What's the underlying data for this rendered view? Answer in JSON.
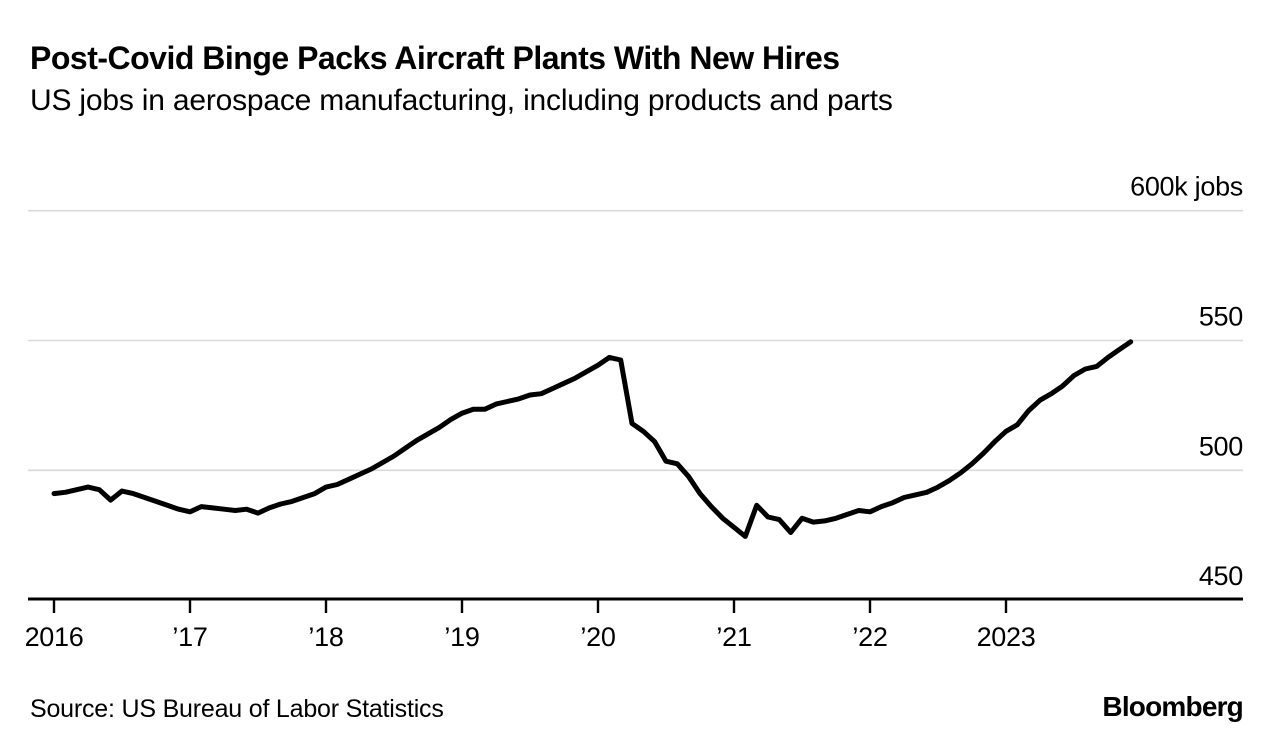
{
  "header": {
    "title": "Post-Covid Binge Packs Aircraft Plants With New Hires",
    "subtitle": "US jobs in aerospace manufacturing, including products and parts"
  },
  "chart_data": {
    "type": "line",
    "title": "Post-Covid Binge Packs Aircraft Plants With New Hires",
    "subtitle": "US jobs in aerospace manufacturing, including products and parts",
    "unit": "thousands of jobs",
    "frequency": "monthly",
    "x_start": "2016-01",
    "x_end": "2023-12",
    "ylim": [
      450,
      600
    ],
    "y_axis_side": "right",
    "grid": true,
    "legend": "none",
    "grid_color": "#d9d9d9",
    "axis_color": "#000000",
    "y_ticks": [
      {
        "value": 600,
        "label": "600k jobs"
      },
      {
        "value": 550,
        "label": "550"
      },
      {
        "value": 500,
        "label": "500"
      },
      {
        "value": 450,
        "label": "450"
      }
    ],
    "x_ticks": [
      {
        "month_index": 0,
        "label": "2016"
      },
      {
        "month_index": 12,
        "label": "’17"
      },
      {
        "month_index": 24,
        "label": "’18"
      },
      {
        "month_index": 36,
        "label": "’19"
      },
      {
        "month_index": 48,
        "label": "’20"
      },
      {
        "month_index": 60,
        "label": "’21"
      },
      {
        "month_index": 72,
        "label": "’22"
      },
      {
        "month_index": 84,
        "label": "2023"
      }
    ],
    "series": [
      {
        "name": "US aerospace manufacturing jobs (thousands)",
        "color": "#000000",
        "values": [
          491,
          491.5,
          492.5,
          493.5,
          492.5,
          488.5,
          492,
          491,
          489.5,
          488,
          486.5,
          485,
          484,
          486,
          485.5,
          485,
          484.5,
          485,
          483.5,
          485.5,
          487,
          488,
          489.5,
          491,
          493.5,
          494.5,
          496.5,
          498.5,
          500.5,
          503,
          505.5,
          508.5,
          511.5,
          514,
          516.5,
          519.5,
          522,
          523.5,
          523.5,
          525.5,
          526.5,
          527.5,
          529,
          529.5,
          531.5,
          533.5,
          535.5,
          538,
          540.5,
          543.5,
          542.5,
          518,
          515,
          511,
          503.5,
          502.5,
          497.5,
          491,
          486,
          481.5,
          478,
          474.5,
          486.5,
          482,
          481,
          476,
          481.5,
          480,
          480.5,
          481.5,
          483,
          484.5,
          484,
          486,
          487.5,
          489.5,
          490.5,
          491.5,
          493.5,
          496,
          499,
          502.5,
          506.5,
          511,
          515,
          517.5,
          523,
          527,
          529.5,
          532.5,
          536.5,
          539,
          540,
          543.5,
          546.5,
          549.5
        ]
      }
    ]
  },
  "footer": {
    "source": "Source: US Bureau of Labor Statistics",
    "brand": "Bloomberg"
  }
}
